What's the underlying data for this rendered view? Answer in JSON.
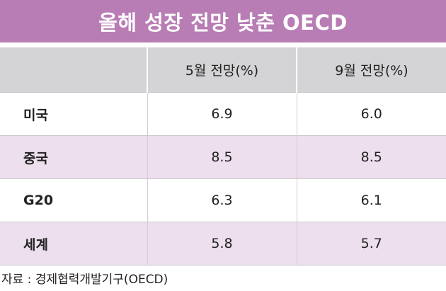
{
  "title": "올해 성장 전망 낮춘 OECD",
  "chart_data": {
    "type": "table",
    "columns": [
      "",
      "5월 전망(%)",
      "9월 전망(%)"
    ],
    "rows": [
      {
        "label": "미국",
        "values": [
          "6.9",
          "6.0"
        ]
      },
      {
        "label": "중국",
        "values": [
          "8.5",
          "8.5"
        ]
      },
      {
        "label": "G20",
        "values": [
          "6.3",
          "6.1"
        ]
      },
      {
        "label": "세계",
        "values": [
          "5.8",
          "5.7"
        ]
      }
    ]
  },
  "source": "자료 : 경제협력개발기구(OECD)",
  "colors": {
    "title_bg": "#b97db5",
    "header_bg": "#d4d4d6",
    "stripe_bg": "#eddfee"
  }
}
